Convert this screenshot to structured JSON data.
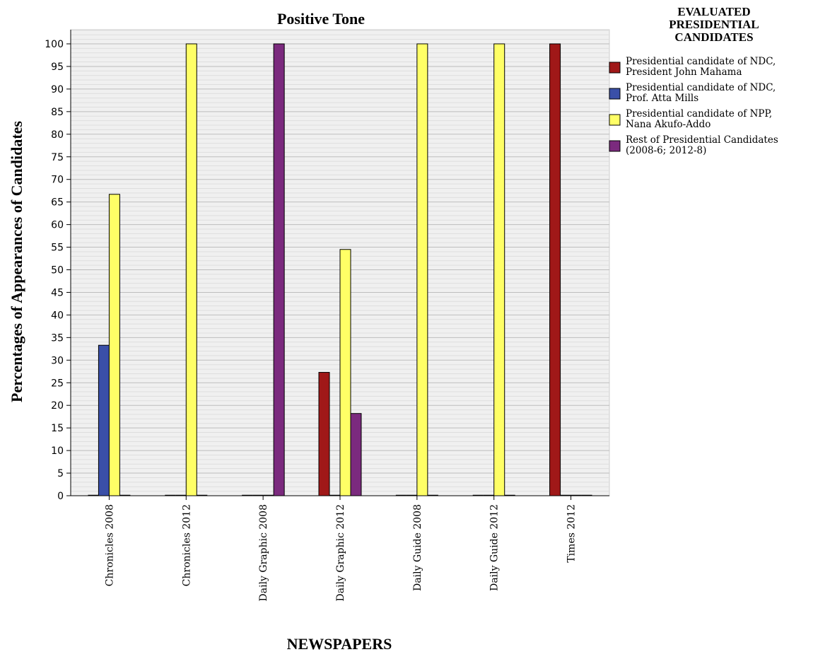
{
  "chart_data": {
    "type": "bar",
    "title": "Positive Tone",
    "xlabel": "NEWSPAPERS",
    "ylabel": "Percentages of Appearances of Candidates",
    "ylim": [
      0,
      100
    ],
    "yticks": [
      0,
      5,
      10,
      15,
      20,
      25,
      30,
      35,
      40,
      45,
      50,
      55,
      60,
      65,
      70,
      75,
      80,
      85,
      90,
      95,
      100
    ],
    "grid": true,
    "legend_placement": "right",
    "legend_title": [
      "EVALUATED",
      "PRESIDENTIAL",
      "CANDIDATES"
    ],
    "categories": [
      "Chronicles 2008",
      "Chronicles 2012",
      "Daily Graphic 2008",
      "Daily Graphic 2012",
      "Daily Guide 2008",
      "Daily Guide 2012",
      "Times 2012"
    ],
    "series": [
      {
        "name": "Presidential candidate of NDC, President John Mahama",
        "label_lines": [
          "Presidential candidate of NDC,",
          "President John Mahama"
        ],
        "color": "#a01818",
        "values": [
          0,
          0,
          0,
          27.3,
          0,
          0,
          100
        ]
      },
      {
        "name": "Presidential candidate of NDC, Prof. Atta Mills",
        "label_lines": [
          "Presidential candidate of NDC,",
          "Prof. Atta Mills"
        ],
        "color": "#3a4fa8",
        "values": [
          33.3,
          0,
          0,
          0,
          0,
          0,
          0
        ]
      },
      {
        "name": "Presidential candidate of NPP, Nana Akufo-Addo",
        "label_lines": [
          "Presidential candidate of NPP,",
          "Nana Akufo-Addo"
        ],
        "color": "#ffff66",
        "values": [
          66.7,
          100,
          0,
          54.5,
          100,
          100,
          0
        ]
      },
      {
        "name": "Rest of Presidential Candidates (2008-6; 2012-8)",
        "label_lines": [
          "Rest of Presidential Candidates",
          "(2008-6; 2012-8)"
        ],
        "color": "#7b2a7e",
        "values": [
          0,
          0,
          100,
          18.2,
          0,
          0,
          0
        ]
      }
    ]
  }
}
